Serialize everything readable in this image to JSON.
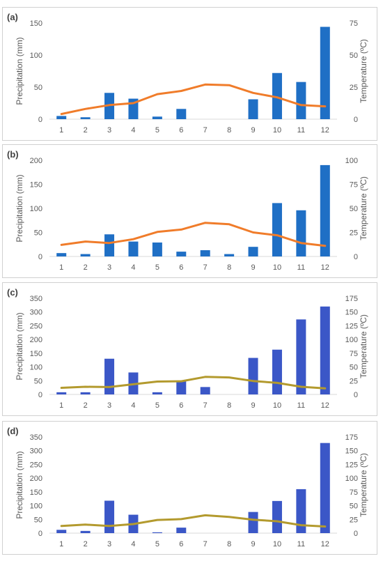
{
  "chart_data": [
    {
      "type": "bar",
      "panel_label": "(a)",
      "categories": [
        "1",
        "2",
        "3",
        "4",
        "5",
        "6",
        "7",
        "8",
        "9",
        "10",
        "11",
        "12"
      ],
      "ylabel": "Precipitation (mm)",
      "y2label": "Temperature (ºC)",
      "ylim": [
        0,
        150
      ],
      "y2lim": [
        0,
        75
      ],
      "yticks": [
        0,
        50,
        100,
        150
      ],
      "y2ticks": [
        0,
        25,
        50,
        75
      ],
      "grid": false,
      "bar_color": "#1f6fc5",
      "line_color": "#f07c2a",
      "series": [
        {
          "type": "bar",
          "axis": "left",
          "values": [
            5,
            3,
            41,
            32,
            4,
            16,
            0,
            0,
            31,
            72,
            58,
            144
          ]
        },
        {
          "type": "line",
          "axis": "right",
          "values": [
            4,
            8,
            11,
            12.5,
            19.5,
            22,
            27,
            26.5,
            20.5,
            17,
            11,
            10
          ]
        }
      ]
    },
    {
      "type": "bar",
      "panel_label": "(b)",
      "categories": [
        "1",
        "2",
        "3",
        "4",
        "5",
        "6",
        "7",
        "8",
        "9",
        "10",
        "11",
        "12"
      ],
      "ylabel": "Precipitation (mm)",
      "y2label": "Temperature (ºC)",
      "ylim": [
        0,
        200
      ],
      "y2lim": [
        0,
        100
      ],
      "yticks": [
        0,
        50,
        100,
        150,
        200
      ],
      "y2ticks": [
        0,
        25,
        50,
        75,
        100
      ],
      "grid": false,
      "bar_color": "#1f6fc5",
      "line_color": "#f07c2a",
      "series": [
        {
          "type": "bar",
          "axis": "left",
          "values": [
            7,
            5,
            46,
            31,
            29,
            10,
            13,
            5,
            20,
            111,
            96,
            190
          ]
        },
        {
          "type": "line",
          "axis": "right",
          "values": [
            12,
            15.5,
            14,
            18,
            25.5,
            28,
            35,
            33.5,
            25,
            22,
            14,
            11
          ]
        }
      ]
    },
    {
      "type": "bar",
      "panel_label": "(c)",
      "categories": [
        "1",
        "2",
        "3",
        "4",
        "5",
        "6",
        "7",
        "8",
        "9",
        "10",
        "11",
        "12"
      ],
      "ylabel": "Precipitation (mm)",
      "y2label": "Temperature (ºC)",
      "ylim": [
        0,
        350
      ],
      "y2lim": [
        0,
        175
      ],
      "yticks": [
        0,
        50,
        100,
        150,
        200,
        250,
        300,
        350
      ],
      "y2ticks": [
        0,
        25,
        50,
        75,
        100,
        125,
        150,
        175
      ],
      "grid": false,
      "bar_color": "#3b57c7",
      "line_color": "#b39a2e",
      "series": [
        {
          "type": "bar",
          "axis": "left",
          "values": [
            8,
            8,
            130,
            80,
            8,
            50,
            27,
            0,
            133,
            163,
            273,
            320
          ]
        },
        {
          "type": "line",
          "axis": "right",
          "values": [
            12,
            14,
            13.5,
            18.5,
            23.5,
            24,
            32,
            31,
            24.5,
            21,
            14,
            11
          ]
        }
      ]
    },
    {
      "type": "bar",
      "panel_label": "(d)",
      "categories": [
        "1",
        "2",
        "3",
        "4",
        "5",
        "6",
        "7",
        "8",
        "9",
        "10",
        "11",
        "12"
      ],
      "ylabel": "Precipitation (mm)",
      "y2label": "Temperature (ºC)",
      "ylim": [
        0,
        350
      ],
      "y2lim": [
        0,
        175
      ],
      "yticks": [
        0,
        50,
        100,
        150,
        200,
        250,
        300,
        350
      ],
      "y2ticks": [
        0,
        25,
        50,
        75,
        100,
        125,
        150,
        175
      ],
      "grid": false,
      "bar_color": "#3b57c7",
      "line_color": "#b39a2e",
      "series": [
        {
          "type": "bar",
          "axis": "left",
          "values": [
            12,
            8,
            118,
            67,
            3,
            20,
            0,
            0,
            77,
            117,
            160,
            328
          ]
        },
        {
          "type": "line",
          "axis": "right",
          "values": [
            13,
            15.5,
            13,
            16.5,
            24,
            25.5,
            32.5,
            29.5,
            24.5,
            21.5,
            14.5,
            12
          ]
        }
      ]
    }
  ]
}
